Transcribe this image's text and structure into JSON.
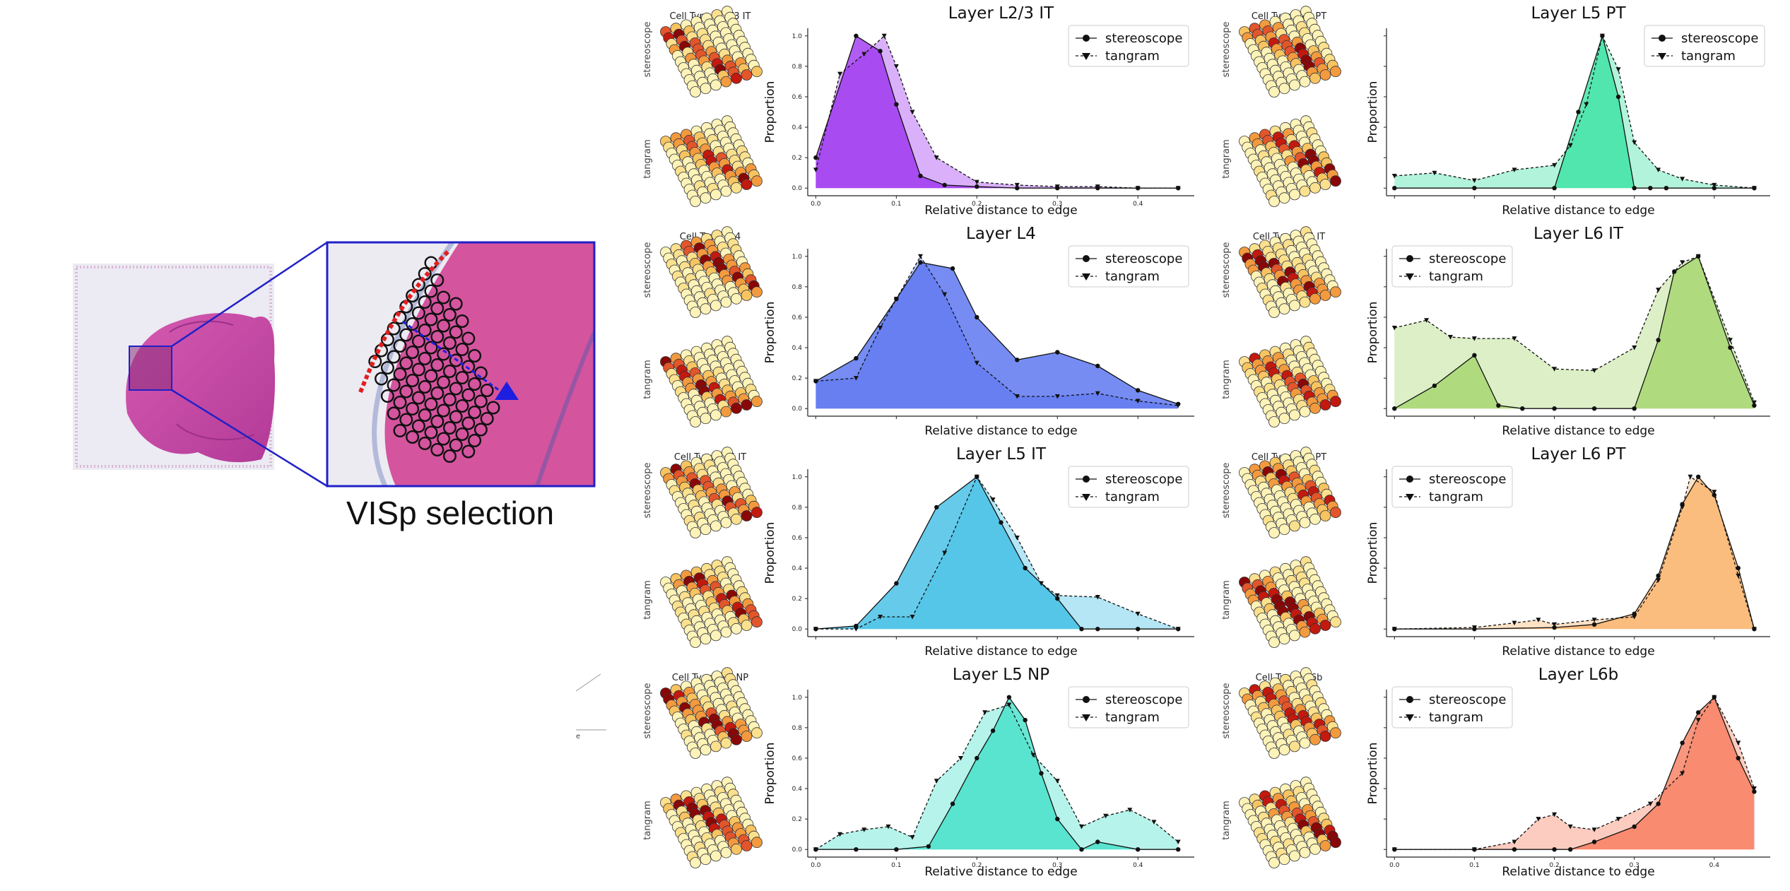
{
  "figure": {
    "selection_caption": "VISp selection",
    "method_row_labels": [
      "stereoscope",
      "tangram"
    ],
    "stray_text": "e"
  },
  "chart_data": [
    {
      "type": "area",
      "title": "Layer L2/3 IT",
      "cell_type_label": "Cell Type : L2/3 IT",
      "xlabel": "Relative distance to edge",
      "ylabel": "Proportion",
      "xlim": [
        -0.01,
        0.47
      ],
      "ylim": [
        -0.05,
        1.05
      ],
      "xticks": [
        0.0,
        0.1,
        0.2,
        0.3,
        0.4
      ],
      "yticks": [
        0.0,
        0.2,
        0.4,
        0.6,
        0.8,
        1.0
      ],
      "color": "#9b30f0",
      "legend": "top-right",
      "grid": false,
      "series": [
        {
          "name": "stereoscope",
          "marker": "circle",
          "line": "solid",
          "x": [
            0,
            0.05,
            0.08,
            0.1,
            0.13,
            0.16,
            0.2,
            0.25,
            0.3,
            0.35,
            0.4,
            0.45
          ],
          "y": [
            0.2,
            1.0,
            0.9,
            0.55,
            0.08,
            0.02,
            0.01,
            0.0,
            0.0,
            0.0,
            0.0,
            0.0
          ]
        },
        {
          "name": "tangram",
          "marker": "triangle",
          "line": "dashed",
          "x": [
            0,
            0.03,
            0.06,
            0.085,
            0.1,
            0.12,
            0.15,
            0.2,
            0.25,
            0.3,
            0.35,
            0.4,
            0.45
          ],
          "y": [
            0.12,
            0.75,
            0.88,
            1.0,
            0.8,
            0.5,
            0.2,
            0.04,
            0.02,
            0.01,
            0.01,
            0.0,
            0.0
          ]
        }
      ]
    },
    {
      "type": "area",
      "title": "Layer L5 PT",
      "cell_type_label": "Cell Type : L5 PT",
      "xlabel": "Relative distance to edge",
      "ylabel": "Proportion",
      "xlim": [
        -0.01,
        0.47
      ],
      "ylim": [
        -0.05,
        1.05
      ],
      "color": "#34e2a0",
      "legend": "top-right",
      "grid": false,
      "series": [
        {
          "name": "stereoscope",
          "marker": "circle",
          "line": "solid",
          "x": [
            0,
            0.1,
            0.2,
            0.23,
            0.26,
            0.28,
            0.3,
            0.32,
            0.34,
            0.4,
            0.45
          ],
          "y": [
            0.0,
            0.0,
            0.0,
            0.5,
            1.0,
            0.6,
            0.0,
            0.0,
            0.0,
            0.0,
            0.0
          ]
        },
        {
          "name": "tangram",
          "marker": "triangle",
          "line": "dashed",
          "x": [
            0,
            0.05,
            0.1,
            0.15,
            0.2,
            0.22,
            0.24,
            0.26,
            0.28,
            0.3,
            0.33,
            0.36,
            0.4,
            0.45
          ],
          "y": [
            0.08,
            0.1,
            0.05,
            0.12,
            0.15,
            0.28,
            0.55,
            1.0,
            0.78,
            0.3,
            0.12,
            0.06,
            0.02,
            0.0
          ]
        }
      ]
    },
    {
      "type": "area",
      "title": "Layer L4",
      "cell_type_label": "Cell Type : L4",
      "xlabel": "Relative distance to edge",
      "ylabel": "Proportion",
      "xlim": [
        -0.01,
        0.47
      ],
      "ylim": [
        -0.05,
        1.05
      ],
      "color": "#4f6cf0",
      "legend": "top-right",
      "grid": false,
      "series": [
        {
          "name": "stereoscope",
          "marker": "circle",
          "line": "solid",
          "x": [
            0,
            0.05,
            0.1,
            0.13,
            0.17,
            0.2,
            0.25,
            0.3,
            0.35,
            0.4,
            0.45
          ],
          "y": [
            0.18,
            0.33,
            0.72,
            0.96,
            0.92,
            0.6,
            0.32,
            0.37,
            0.28,
            0.12,
            0.03
          ]
        },
        {
          "name": "tangram",
          "marker": "triangle",
          "line": "dashed",
          "x": [
            0,
            0.05,
            0.08,
            0.1,
            0.13,
            0.16,
            0.2,
            0.25,
            0.3,
            0.35,
            0.4,
            0.45
          ],
          "y": [
            0.18,
            0.2,
            0.53,
            0.72,
            1.0,
            0.75,
            0.3,
            0.08,
            0.08,
            0.1,
            0.05,
            0.02
          ]
        }
      ]
    },
    {
      "type": "area",
      "title": "Layer L6 IT",
      "cell_type_label": "Cell Type : L6 IT",
      "xlabel": "Relative distance to edge",
      "ylabel": "Proportion",
      "xlim": [
        -0.01,
        0.47
      ],
      "ylim": [
        -0.05,
        1.05
      ],
      "color": "#a3d66a",
      "legend": "top-left",
      "grid": false,
      "series": [
        {
          "name": "stereoscope",
          "marker": "circle",
          "line": "solid",
          "x": [
            0,
            0.05,
            0.1,
            0.13,
            0.16,
            0.2,
            0.25,
            0.3,
            0.33,
            0.35,
            0.38,
            0.42,
            0.45
          ],
          "y": [
            0.0,
            0.15,
            0.35,
            0.02,
            0.0,
            0.0,
            0.0,
            0.0,
            0.45,
            0.9,
            1.0,
            0.4,
            0.02
          ]
        },
        {
          "name": "tangram",
          "marker": "triangle",
          "line": "dashed",
          "x": [
            0,
            0.04,
            0.07,
            0.1,
            0.15,
            0.2,
            0.25,
            0.3,
            0.33,
            0.36,
            0.38,
            0.42,
            0.45
          ],
          "y": [
            0.53,
            0.58,
            0.47,
            0.46,
            0.46,
            0.26,
            0.25,
            0.4,
            0.78,
            0.96,
            1.0,
            0.45,
            0.04
          ]
        }
      ]
    },
    {
      "type": "area",
      "title": "Layer L5 IT",
      "cell_type_label": "Cell Type : L5 IT",
      "xlabel": "Relative distance to edge",
      "ylabel": "Proportion",
      "xlim": [
        -0.01,
        0.47
      ],
      "ylim": [
        -0.05,
        1.05
      ],
      "color": "#3bbde6",
      "legend": "top-right",
      "grid": false,
      "series": [
        {
          "name": "stereoscope",
          "marker": "circle",
          "line": "solid",
          "x": [
            0,
            0.05,
            0.1,
            0.15,
            0.2,
            0.23,
            0.26,
            0.3,
            0.33,
            0.35,
            0.4,
            0.45
          ],
          "y": [
            0.0,
            0.02,
            0.3,
            0.8,
            1.0,
            0.7,
            0.4,
            0.2,
            0.0,
            0.0,
            0.0,
            0.0
          ]
        },
        {
          "name": "tangram",
          "marker": "triangle",
          "line": "dashed",
          "x": [
            0,
            0.05,
            0.08,
            0.12,
            0.16,
            0.2,
            0.22,
            0.25,
            0.28,
            0.3,
            0.35,
            0.4,
            0.45
          ],
          "y": [
            0.0,
            0.0,
            0.08,
            0.08,
            0.5,
            1.0,
            0.85,
            0.6,
            0.3,
            0.22,
            0.21,
            0.1,
            0.0
          ]
        }
      ]
    },
    {
      "type": "area",
      "title": "Layer L6 PT",
      "cell_type_label": "Cell Type : L6 PT",
      "xlabel": "Relative distance to edge",
      "ylabel": "Proportion",
      "xlim": [
        -0.01,
        0.47
      ],
      "ylim": [
        -0.05,
        1.05
      ],
      "color": "#f9b46a",
      "legend": "top-left",
      "grid": false,
      "series": [
        {
          "name": "stereoscope",
          "marker": "circle",
          "line": "solid",
          "x": [
            0,
            0.1,
            0.2,
            0.25,
            0.3,
            0.33,
            0.36,
            0.38,
            0.4,
            0.43,
            0.45
          ],
          "y": [
            0.0,
            0.0,
            0.01,
            0.03,
            0.1,
            0.35,
            0.82,
            1.0,
            0.88,
            0.4,
            0.0
          ]
        },
        {
          "name": "tangram",
          "marker": "triangle",
          "line": "dashed",
          "x": [
            0,
            0.1,
            0.15,
            0.18,
            0.2,
            0.25,
            0.3,
            0.33,
            0.36,
            0.37,
            0.4,
            0.43,
            0.45
          ],
          "y": [
            0.0,
            0.01,
            0.04,
            0.06,
            0.03,
            0.06,
            0.08,
            0.32,
            0.8,
            1.0,
            0.9,
            0.35,
            0.0
          ]
        }
      ]
    },
    {
      "type": "area",
      "title": "Layer L5 NP",
      "cell_type_label": "Cell Type : L5 NP",
      "xlabel": "Relative distance to edge",
      "ylabel": "Proportion",
      "xlim": [
        -0.01,
        0.47
      ],
      "ylim": [
        -0.05,
        1.05
      ],
      "color": "#40e0c8",
      "legend": "top-right",
      "grid": false,
      "series": [
        {
          "name": "stereoscope",
          "marker": "circle",
          "line": "solid",
          "x": [
            0,
            0.05,
            0.1,
            0.14,
            0.17,
            0.2,
            0.22,
            0.24,
            0.26,
            0.28,
            0.3,
            0.33,
            0.35,
            0.4,
            0.45
          ],
          "y": [
            0.0,
            0.0,
            0.0,
            0.02,
            0.3,
            0.6,
            0.78,
            1.0,
            0.85,
            0.5,
            0.2,
            0.0,
            0.05,
            0.0,
            0.0
          ]
        },
        {
          "name": "tangram",
          "marker": "triangle",
          "line": "dashed",
          "x": [
            0,
            0.03,
            0.06,
            0.09,
            0.12,
            0.15,
            0.18,
            0.21,
            0.24,
            0.27,
            0.3,
            0.33,
            0.36,
            0.39,
            0.42,
            0.45
          ],
          "y": [
            0.0,
            0.1,
            0.13,
            0.15,
            0.08,
            0.45,
            0.6,
            0.9,
            0.95,
            0.62,
            0.45,
            0.15,
            0.22,
            0.26,
            0.18,
            0.05
          ]
        }
      ]
    },
    {
      "type": "area",
      "title": "Layer L6b",
      "cell_type_label": "Cell Type : L6b",
      "xlabel": "Relative distance to edge",
      "ylabel": "Proportion",
      "xlim": [
        -0.01,
        0.47
      ],
      "ylim": [
        -0.05,
        1.05
      ],
      "color": "#f7785a",
      "legend": "top-left",
      "grid": false,
      "series": [
        {
          "name": "stereoscope",
          "marker": "circle",
          "line": "solid",
          "x": [
            0,
            0.1,
            0.15,
            0.2,
            0.22,
            0.25,
            0.3,
            0.33,
            0.36,
            0.38,
            0.4,
            0.43,
            0.45
          ],
          "y": [
            0.0,
            0.0,
            0.0,
            0.0,
            0.0,
            0.05,
            0.15,
            0.3,
            0.7,
            0.9,
            1.0,
            0.6,
            0.38
          ]
        },
        {
          "name": "tangram",
          "marker": "triangle",
          "line": "dashed",
          "x": [
            0,
            0.1,
            0.15,
            0.18,
            0.2,
            0.22,
            0.25,
            0.28,
            0.32,
            0.36,
            0.38,
            0.4,
            0.43,
            0.45
          ],
          "y": [
            0.0,
            0.0,
            0.05,
            0.2,
            0.23,
            0.15,
            0.13,
            0.2,
            0.3,
            0.5,
            0.85,
            1.0,
            0.7,
            0.4
          ]
        }
      ]
    }
  ]
}
